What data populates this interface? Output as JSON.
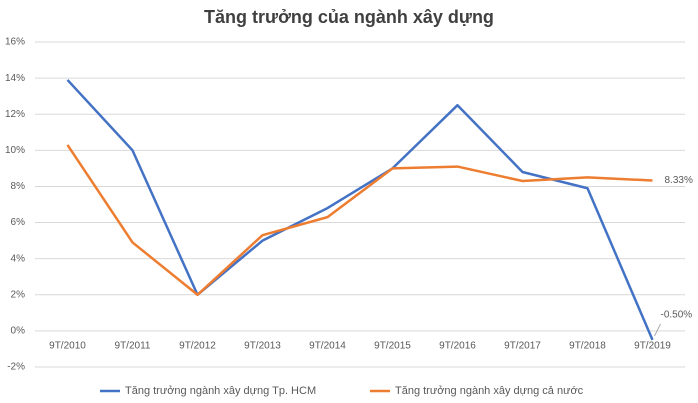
{
  "chart_data": {
    "type": "line",
    "title": "Tăng trưởng của ngành xây dựng",
    "categories": [
      "9T/2010",
      "9T/2011",
      "9T/2012",
      "9T/2013",
      "9T/2014",
      "9T/2015",
      "9T/2016",
      "9T/2017",
      "9T/2018",
      "9T/2019"
    ],
    "series": [
      {
        "name": "Tăng trưởng ngành xây dựng Tp. HCM",
        "color": "#4472c4",
        "values": [
          13.9,
          10.0,
          2.0,
          5.0,
          6.8,
          9.0,
          12.5,
          8.8,
          7.9,
          -0.5
        ],
        "value_labels": [
          null,
          null,
          null,
          null,
          null,
          null,
          null,
          null,
          null,
          "-0.50%"
        ]
      },
      {
        "name": "Tăng trưởng ngành xây dựng cả nước",
        "color": "#ed7d31",
        "values": [
          10.3,
          4.9,
          2.0,
          5.3,
          6.3,
          9.0,
          9.1,
          8.3,
          8.5,
          8.33
        ],
        "value_labels": [
          null,
          null,
          null,
          null,
          null,
          null,
          null,
          null,
          null,
          "8.33%"
        ]
      }
    ],
    "ylim": [
      -2,
      16
    ],
    "yticks": [
      {
        "value": -2,
        "label": "-2%"
      },
      {
        "value": 0,
        "label": "0%"
      },
      {
        "value": 2,
        "label": "2%"
      },
      {
        "value": 4,
        "label": "4%"
      },
      {
        "value": 6,
        "label": "6%"
      },
      {
        "value": 8,
        "label": "8%"
      },
      {
        "value": 10,
        "label": "10%"
      },
      {
        "value": 12,
        "label": "12%"
      },
      {
        "value": 14,
        "label": "14%"
      },
      {
        "value": 16,
        "label": "16%"
      }
    ],
    "grid": true
  }
}
